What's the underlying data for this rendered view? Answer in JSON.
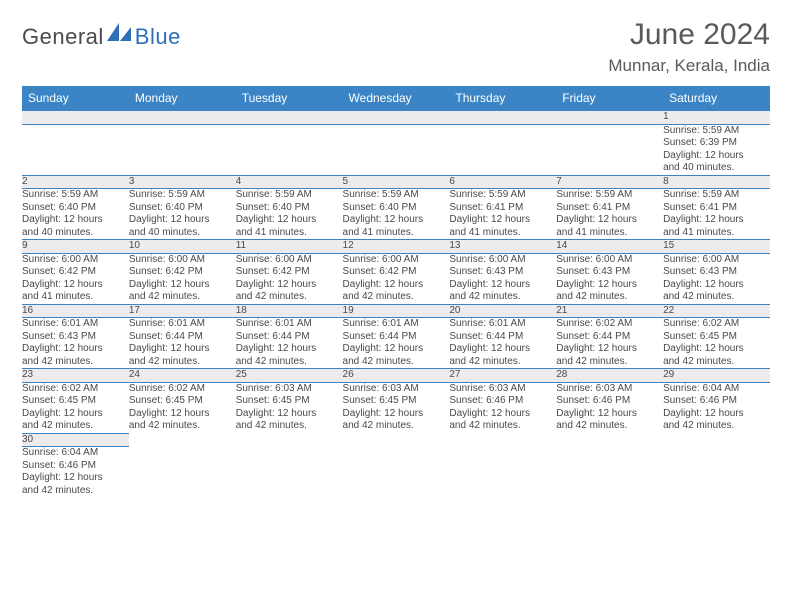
{
  "brand": {
    "part1": "General",
    "part2": "Blue"
  },
  "title": "June 2024",
  "location": "Munnar, Kerala, India",
  "colors": {
    "header_bg": "#3b85c6",
    "header_text": "#ffffff",
    "rule": "#3b85c6",
    "daynum_bg": "#ececec",
    "text": "#4a4a4a",
    "brand_gray": "#4a4a4a",
    "brand_blue": "#2e6fb5"
  },
  "weekdays": [
    "Sunday",
    "Monday",
    "Tuesday",
    "Wednesday",
    "Thursday",
    "Friday",
    "Saturday"
  ],
  "weeks": [
    [
      null,
      null,
      null,
      null,
      null,
      null,
      {
        "n": "1",
        "sr": "Sunrise: 5:59 AM",
        "ss": "Sunset: 6:39 PM",
        "dl1": "Daylight: 12 hours",
        "dl2": "and 40 minutes."
      }
    ],
    [
      {
        "n": "2",
        "sr": "Sunrise: 5:59 AM",
        "ss": "Sunset: 6:40 PM",
        "dl1": "Daylight: 12 hours",
        "dl2": "and 40 minutes."
      },
      {
        "n": "3",
        "sr": "Sunrise: 5:59 AM",
        "ss": "Sunset: 6:40 PM",
        "dl1": "Daylight: 12 hours",
        "dl2": "and 40 minutes."
      },
      {
        "n": "4",
        "sr": "Sunrise: 5:59 AM",
        "ss": "Sunset: 6:40 PM",
        "dl1": "Daylight: 12 hours",
        "dl2": "and 41 minutes."
      },
      {
        "n": "5",
        "sr": "Sunrise: 5:59 AM",
        "ss": "Sunset: 6:40 PM",
        "dl1": "Daylight: 12 hours",
        "dl2": "and 41 minutes."
      },
      {
        "n": "6",
        "sr": "Sunrise: 5:59 AM",
        "ss": "Sunset: 6:41 PM",
        "dl1": "Daylight: 12 hours",
        "dl2": "and 41 minutes."
      },
      {
        "n": "7",
        "sr": "Sunrise: 5:59 AM",
        "ss": "Sunset: 6:41 PM",
        "dl1": "Daylight: 12 hours",
        "dl2": "and 41 minutes."
      },
      {
        "n": "8",
        "sr": "Sunrise: 5:59 AM",
        "ss": "Sunset: 6:41 PM",
        "dl1": "Daylight: 12 hours",
        "dl2": "and 41 minutes."
      }
    ],
    [
      {
        "n": "9",
        "sr": "Sunrise: 6:00 AM",
        "ss": "Sunset: 6:42 PM",
        "dl1": "Daylight: 12 hours",
        "dl2": "and 41 minutes."
      },
      {
        "n": "10",
        "sr": "Sunrise: 6:00 AM",
        "ss": "Sunset: 6:42 PM",
        "dl1": "Daylight: 12 hours",
        "dl2": "and 42 minutes."
      },
      {
        "n": "11",
        "sr": "Sunrise: 6:00 AM",
        "ss": "Sunset: 6:42 PM",
        "dl1": "Daylight: 12 hours",
        "dl2": "and 42 minutes."
      },
      {
        "n": "12",
        "sr": "Sunrise: 6:00 AM",
        "ss": "Sunset: 6:42 PM",
        "dl1": "Daylight: 12 hours",
        "dl2": "and 42 minutes."
      },
      {
        "n": "13",
        "sr": "Sunrise: 6:00 AM",
        "ss": "Sunset: 6:43 PM",
        "dl1": "Daylight: 12 hours",
        "dl2": "and 42 minutes."
      },
      {
        "n": "14",
        "sr": "Sunrise: 6:00 AM",
        "ss": "Sunset: 6:43 PM",
        "dl1": "Daylight: 12 hours",
        "dl2": "and 42 minutes."
      },
      {
        "n": "15",
        "sr": "Sunrise: 6:00 AM",
        "ss": "Sunset: 6:43 PM",
        "dl1": "Daylight: 12 hours",
        "dl2": "and 42 minutes."
      }
    ],
    [
      {
        "n": "16",
        "sr": "Sunrise: 6:01 AM",
        "ss": "Sunset: 6:43 PM",
        "dl1": "Daylight: 12 hours",
        "dl2": "and 42 minutes."
      },
      {
        "n": "17",
        "sr": "Sunrise: 6:01 AM",
        "ss": "Sunset: 6:44 PM",
        "dl1": "Daylight: 12 hours",
        "dl2": "and 42 minutes."
      },
      {
        "n": "18",
        "sr": "Sunrise: 6:01 AM",
        "ss": "Sunset: 6:44 PM",
        "dl1": "Daylight: 12 hours",
        "dl2": "and 42 minutes."
      },
      {
        "n": "19",
        "sr": "Sunrise: 6:01 AM",
        "ss": "Sunset: 6:44 PM",
        "dl1": "Daylight: 12 hours",
        "dl2": "and 42 minutes."
      },
      {
        "n": "20",
        "sr": "Sunrise: 6:01 AM",
        "ss": "Sunset: 6:44 PM",
        "dl1": "Daylight: 12 hours",
        "dl2": "and 42 minutes."
      },
      {
        "n": "21",
        "sr": "Sunrise: 6:02 AM",
        "ss": "Sunset: 6:44 PM",
        "dl1": "Daylight: 12 hours",
        "dl2": "and 42 minutes."
      },
      {
        "n": "22",
        "sr": "Sunrise: 6:02 AM",
        "ss": "Sunset: 6:45 PM",
        "dl1": "Daylight: 12 hours",
        "dl2": "and 42 minutes."
      }
    ],
    [
      {
        "n": "23",
        "sr": "Sunrise: 6:02 AM",
        "ss": "Sunset: 6:45 PM",
        "dl1": "Daylight: 12 hours",
        "dl2": "and 42 minutes."
      },
      {
        "n": "24",
        "sr": "Sunrise: 6:02 AM",
        "ss": "Sunset: 6:45 PM",
        "dl1": "Daylight: 12 hours",
        "dl2": "and 42 minutes."
      },
      {
        "n": "25",
        "sr": "Sunrise: 6:03 AM",
        "ss": "Sunset: 6:45 PM",
        "dl1": "Daylight: 12 hours",
        "dl2": "and 42 minutes."
      },
      {
        "n": "26",
        "sr": "Sunrise: 6:03 AM",
        "ss": "Sunset: 6:45 PM",
        "dl1": "Daylight: 12 hours",
        "dl2": "and 42 minutes."
      },
      {
        "n": "27",
        "sr": "Sunrise: 6:03 AM",
        "ss": "Sunset: 6:46 PM",
        "dl1": "Daylight: 12 hours",
        "dl2": "and 42 minutes."
      },
      {
        "n": "28",
        "sr": "Sunrise: 6:03 AM",
        "ss": "Sunset: 6:46 PM",
        "dl1": "Daylight: 12 hours",
        "dl2": "and 42 minutes."
      },
      {
        "n": "29",
        "sr": "Sunrise: 6:04 AM",
        "ss": "Sunset: 6:46 PM",
        "dl1": "Daylight: 12 hours",
        "dl2": "and 42 minutes."
      }
    ],
    [
      {
        "n": "30",
        "sr": "Sunrise: 6:04 AM",
        "ss": "Sunset: 6:46 PM",
        "dl1": "Daylight: 12 hours",
        "dl2": "and 42 minutes."
      },
      null,
      null,
      null,
      null,
      null,
      null
    ]
  ]
}
